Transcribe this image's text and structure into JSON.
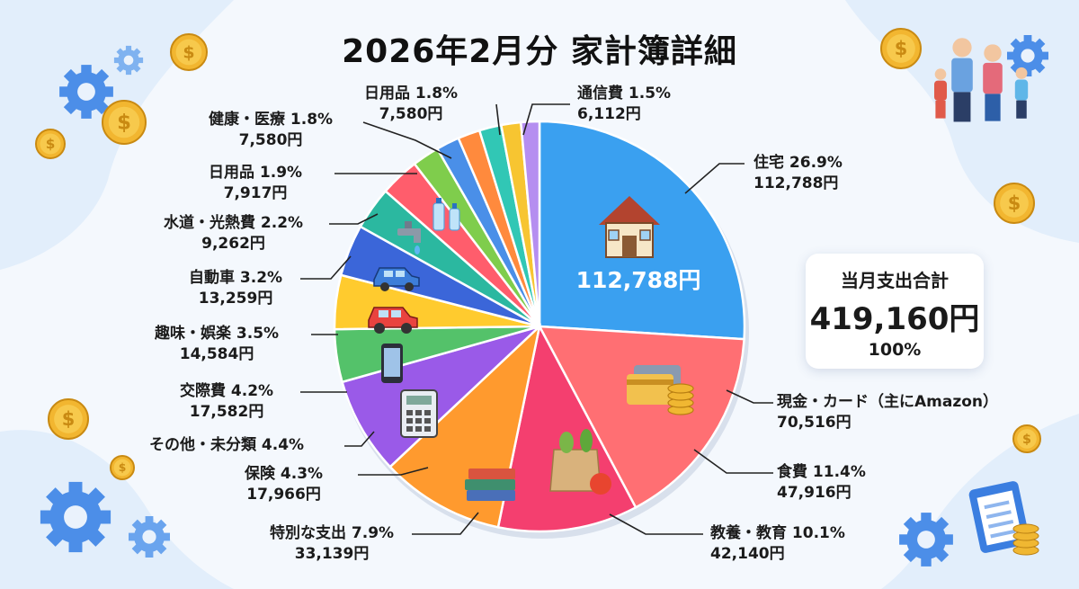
{
  "chart_data": {
    "type": "pie",
    "title": "2026年2月分 家計簿詳細",
    "center_label": "112,788円",
    "total": {
      "label": "当月支出合計",
      "value": "419,160円",
      "percent": "100%"
    },
    "slices": [
      {
        "label": "住宅",
        "percent": 26.9,
        "percent_text": "26.9%",
        "amount": 112788,
        "amount_text": "112,788円",
        "color": "#3aa0f0",
        "icon": "house-icon"
      },
      {
        "label": "現金・カード（主にAmazon）",
        "percent": 16.8,
        "percent_text": "",
        "amount": 70516,
        "amount_text": "70,516円",
        "color": "#ff6f73",
        "icon": "credit-cards-coins-icon"
      },
      {
        "label": "食費",
        "percent": 11.4,
        "percent_text": "11.4%",
        "amount": 47916,
        "amount_text": "47,916円",
        "color": "#f43f6f",
        "icon": "groceries-bag-icon"
      },
      {
        "label": "教養・教育",
        "percent": 10.1,
        "percent_text": "10.1%",
        "amount": 42140,
        "amount_text": "42,140円",
        "color": "#ff9a2e",
        "icon": ""
      },
      {
        "label": "特別な支出",
        "percent": 7.9,
        "percent_text": "7.9%",
        "amount": 33139,
        "amount_text": "33,139円",
        "color": "#9a5ae8",
        "icon": "books-stack-icon"
      },
      {
        "label": "保険",
        "percent": 4.3,
        "percent_text": "4.3%",
        "amount": 17966,
        "amount_text": "17,966円",
        "color": "#54c26a",
        "icon": ""
      },
      {
        "label": "その他・未分類",
        "percent": 4.4,
        "percent_text": "4.4%",
        "amount": 18500,
        "amount_text": "",
        "color": "#ffcb2e",
        "icon": "calculator-icon"
      },
      {
        "label": "交際費",
        "percent": 4.2,
        "percent_text": "4.2%",
        "amount": 17582,
        "amount_text": "17,582円",
        "color": "#3b66d9",
        "icon": "smartphone-icon"
      },
      {
        "label": "趣味・娯楽",
        "percent": 3.5,
        "percent_text": "3.5%",
        "amount": 14584,
        "amount_text": "14,584円",
        "color": "#2bb8a0",
        "icon": "car-icon"
      },
      {
        "label": "自動車",
        "percent": 3.2,
        "percent_text": "3.2%",
        "amount": 13259,
        "amount_text": "13,259円",
        "color": "#ff5d6c",
        "icon": "car-icon"
      },
      {
        "label": "水道・光熱費",
        "percent": 2.2,
        "percent_text": "2.2%",
        "amount": 9262,
        "amount_text": "9,262円",
        "color": "#7fcd4c",
        "icon": "water-faucet-icon"
      },
      {
        "label": "日用品",
        "percent": 1.9,
        "percent_text": "1.9%",
        "amount": 7917,
        "amount_text": "7,917円",
        "color": "#4a8fe8",
        "icon": "water-bottles-icon"
      },
      {
        "label": "健康・医療",
        "percent": 1.8,
        "percent_text": "1.8%",
        "amount": 7580,
        "amount_text": "7,580円",
        "color": "#ff8a3d",
        "icon": ""
      },
      {
        "label": "日用品",
        "percent": 1.8,
        "percent_text": "1.8%",
        "amount": 7580,
        "amount_text": "7,580円",
        "color": "#31c7b5",
        "icon": ""
      },
      {
        "label": "",
        "percent": 1.6,
        "percent_text": "",
        "amount": 6500,
        "amount_text": "",
        "color": "#f7c531",
        "icon": ""
      },
      {
        "label": "通信費",
        "percent": 1.5,
        "percent_text": "1.5%",
        "amount": 6112,
        "amount_text": "6,112円",
        "color": "#b58ef0",
        "icon": ""
      }
    ]
  },
  "decorations": [
    "gear-icon",
    "coin-icon",
    "family-icon",
    "clipboard-icon"
  ]
}
